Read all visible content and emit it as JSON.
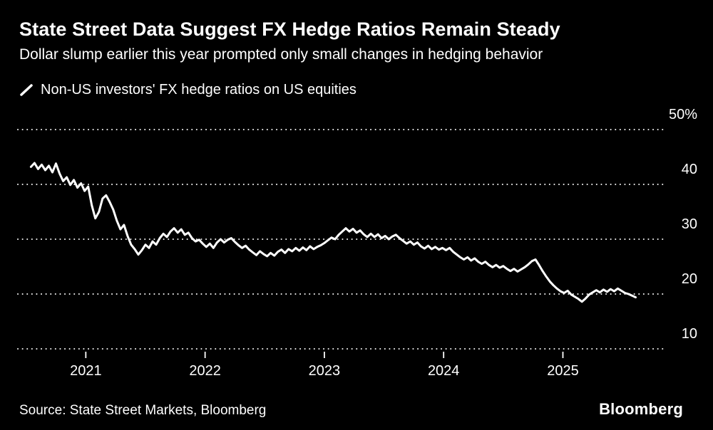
{
  "header": {
    "title": "State Street Data Suggest FX Hedge Ratios Remain Steady",
    "subtitle": "Dollar slump earlier this year prompted only small changes in hedging behavior"
  },
  "legend": {
    "label": "Non-US investors' FX hedge ratios on US equities",
    "marker": "white-diagonal-line"
  },
  "footer": {
    "source": "Source: State Street Markets, Bloomberg",
    "brand": "Bloomberg"
  },
  "colors": {
    "background": "#000000",
    "text": "#ffffff",
    "line": "#ffffff",
    "grid": "#ffffff"
  },
  "chart_data": {
    "type": "line",
    "title": "Non-US investors' FX hedge ratios on US equities",
    "xlabel": "",
    "ylabel": "%",
    "grid": "dotted-horizontal",
    "legend_position": "top-left",
    "xlim": [
      2020.43,
      2025.84
    ],
    "ylim": [
      10,
      50
    ],
    "x_ticks": [
      2021,
      2022,
      2023,
      2024,
      2025
    ],
    "y_ticks": [
      50,
      40,
      30,
      20,
      10
    ],
    "y_tick_labels": [
      "50%",
      "40",
      "30",
      "20",
      "10"
    ],
    "series": [
      {
        "name": "Non-US investors' FX hedge ratios on US equities",
        "color": "#ffffff",
        "points": [
          [
            2020.54,
            43.2
          ],
          [
            2020.57,
            43.9
          ],
          [
            2020.6,
            42.8
          ],
          [
            2020.63,
            43.6
          ],
          [
            2020.66,
            42.6
          ],
          [
            2020.69,
            43.4
          ],
          [
            2020.72,
            42.2
          ],
          [
            2020.75,
            43.8
          ],
          [
            2020.78,
            42.0
          ],
          [
            2020.81,
            40.6
          ],
          [
            2020.84,
            41.3
          ],
          [
            2020.87,
            39.9
          ],
          [
            2020.9,
            40.8
          ],
          [
            2020.93,
            39.4
          ],
          [
            2020.96,
            40.2
          ],
          [
            2020.99,
            38.8
          ],
          [
            2021.02,
            39.6
          ],
          [
            2021.05,
            36.2
          ],
          [
            2021.08,
            33.8
          ],
          [
            2021.11,
            35.0
          ],
          [
            2021.14,
            37.4
          ],
          [
            2021.17,
            38.0
          ],
          [
            2021.2,
            36.8
          ],
          [
            2021.23,
            35.4
          ],
          [
            2021.26,
            33.4
          ],
          [
            2021.29,
            31.8
          ],
          [
            2021.32,
            32.6
          ],
          [
            2021.35,
            30.6
          ],
          [
            2021.38,
            29.0
          ],
          [
            2021.41,
            28.2
          ],
          [
            2021.44,
            27.2
          ],
          [
            2021.47,
            28.0
          ],
          [
            2021.5,
            29.0
          ],
          [
            2021.53,
            28.4
          ],
          [
            2021.56,
            29.6
          ],
          [
            2021.59,
            29.0
          ],
          [
            2021.62,
            30.2
          ],
          [
            2021.65,
            31.0
          ],
          [
            2021.68,
            30.4
          ],
          [
            2021.71,
            31.4
          ],
          [
            2021.74,
            32.0
          ],
          [
            2021.77,
            31.2
          ],
          [
            2021.8,
            31.8
          ],
          [
            2021.83,
            30.8
          ],
          [
            2021.86,
            31.2
          ],
          [
            2021.89,
            30.2
          ],
          [
            2021.92,
            29.6
          ],
          [
            2021.95,
            29.9
          ],
          [
            2021.98,
            29.2
          ],
          [
            2022.01,
            28.6
          ],
          [
            2022.04,
            29.2
          ],
          [
            2022.07,
            28.4
          ],
          [
            2022.1,
            29.4
          ],
          [
            2022.13,
            30.0
          ],
          [
            2022.16,
            29.4
          ],
          [
            2022.19,
            29.9
          ],
          [
            2022.22,
            30.2
          ],
          [
            2022.25,
            29.5
          ],
          [
            2022.28,
            28.9
          ],
          [
            2022.31,
            28.4
          ],
          [
            2022.34,
            28.8
          ],
          [
            2022.37,
            28.1
          ],
          [
            2022.4,
            27.6
          ],
          [
            2022.43,
            27.1
          ],
          [
            2022.46,
            27.8
          ],
          [
            2022.49,
            27.3
          ],
          [
            2022.52,
            26.9
          ],
          [
            2022.55,
            27.5
          ],
          [
            2022.58,
            27.0
          ],
          [
            2022.61,
            27.7
          ],
          [
            2022.64,
            28.1
          ],
          [
            2022.67,
            27.5
          ],
          [
            2022.7,
            28.2
          ],
          [
            2022.73,
            27.8
          ],
          [
            2022.76,
            28.4
          ],
          [
            2022.79,
            27.9
          ],
          [
            2022.82,
            28.5
          ],
          [
            2022.85,
            28.0
          ],
          [
            2022.88,
            28.7
          ],
          [
            2022.91,
            28.2
          ],
          [
            2022.94,
            28.6
          ],
          [
            2022.97,
            28.9
          ],
          [
            2023.0,
            29.3
          ],
          [
            2023.03,
            29.8
          ],
          [
            2023.06,
            30.3
          ],
          [
            2023.09,
            30.0
          ],
          [
            2023.12,
            30.8
          ],
          [
            2023.15,
            31.4
          ],
          [
            2023.18,
            32.0
          ],
          [
            2023.21,
            31.4
          ],
          [
            2023.24,
            31.9
          ],
          [
            2023.27,
            31.2
          ],
          [
            2023.3,
            31.6
          ],
          [
            2023.33,
            30.9
          ],
          [
            2023.36,
            30.4
          ],
          [
            2023.39,
            31.0
          ],
          [
            2023.42,
            30.4
          ],
          [
            2023.45,
            30.9
          ],
          [
            2023.48,
            30.2
          ],
          [
            2023.51,
            30.6
          ],
          [
            2023.54,
            30.0
          ],
          [
            2023.57,
            30.5
          ],
          [
            2023.6,
            30.8
          ],
          [
            2023.63,
            30.2
          ],
          [
            2023.66,
            29.7
          ],
          [
            2023.69,
            29.2
          ],
          [
            2023.72,
            29.6
          ],
          [
            2023.75,
            29.0
          ],
          [
            2023.78,
            29.4
          ],
          [
            2023.81,
            28.7
          ],
          [
            2023.84,
            28.3
          ],
          [
            2023.87,
            28.8
          ],
          [
            2023.9,
            28.2
          ],
          [
            2023.93,
            28.6
          ],
          [
            2023.96,
            28.1
          ],
          [
            2023.99,
            28.4
          ],
          [
            2024.02,
            28.0
          ],
          [
            2024.05,
            28.4
          ],
          [
            2024.08,
            27.7
          ],
          [
            2024.11,
            27.2
          ],
          [
            2024.14,
            26.7
          ],
          [
            2024.17,
            26.3
          ],
          [
            2024.2,
            26.7
          ],
          [
            2024.23,
            26.1
          ],
          [
            2024.26,
            26.5
          ],
          [
            2024.29,
            25.9
          ],
          [
            2024.32,
            25.5
          ],
          [
            2024.35,
            25.9
          ],
          [
            2024.38,
            25.3
          ],
          [
            2024.41,
            24.9
          ],
          [
            2024.44,
            25.3
          ],
          [
            2024.47,
            24.8
          ],
          [
            2024.5,
            25.1
          ],
          [
            2024.53,
            24.6
          ],
          [
            2024.56,
            24.2
          ],
          [
            2024.59,
            24.6
          ],
          [
            2024.62,
            24.1
          ],
          [
            2024.65,
            24.5
          ],
          [
            2024.68,
            24.9
          ],
          [
            2024.71,
            25.4
          ],
          [
            2024.74,
            26.0
          ],
          [
            2024.77,
            26.3
          ],
          [
            2024.8,
            25.3
          ],
          [
            2024.83,
            24.2
          ],
          [
            2024.86,
            23.2
          ],
          [
            2024.89,
            22.3
          ],
          [
            2024.92,
            21.6
          ],
          [
            2024.95,
            21.0
          ],
          [
            2024.98,
            20.5
          ],
          [
            2025.01,
            20.2
          ],
          [
            2025.04,
            20.6
          ],
          [
            2025.07,
            19.9
          ],
          [
            2025.1,
            19.5
          ],
          [
            2025.13,
            19.1
          ],
          [
            2025.16,
            18.6
          ],
          [
            2025.19,
            19.2
          ],
          [
            2025.22,
            19.9
          ],
          [
            2025.25,
            20.3
          ],
          [
            2025.28,
            20.7
          ],
          [
            2025.31,
            20.3
          ],
          [
            2025.34,
            20.8
          ],
          [
            2025.37,
            20.4
          ],
          [
            2025.4,
            20.9
          ],
          [
            2025.43,
            20.5
          ],
          [
            2025.46,
            21.0
          ],
          [
            2025.49,
            20.6
          ],
          [
            2025.52,
            20.2
          ],
          [
            2025.55,
            20.0
          ],
          [
            2025.58,
            19.7
          ],
          [
            2025.61,
            19.4
          ]
        ]
      }
    ]
  }
}
